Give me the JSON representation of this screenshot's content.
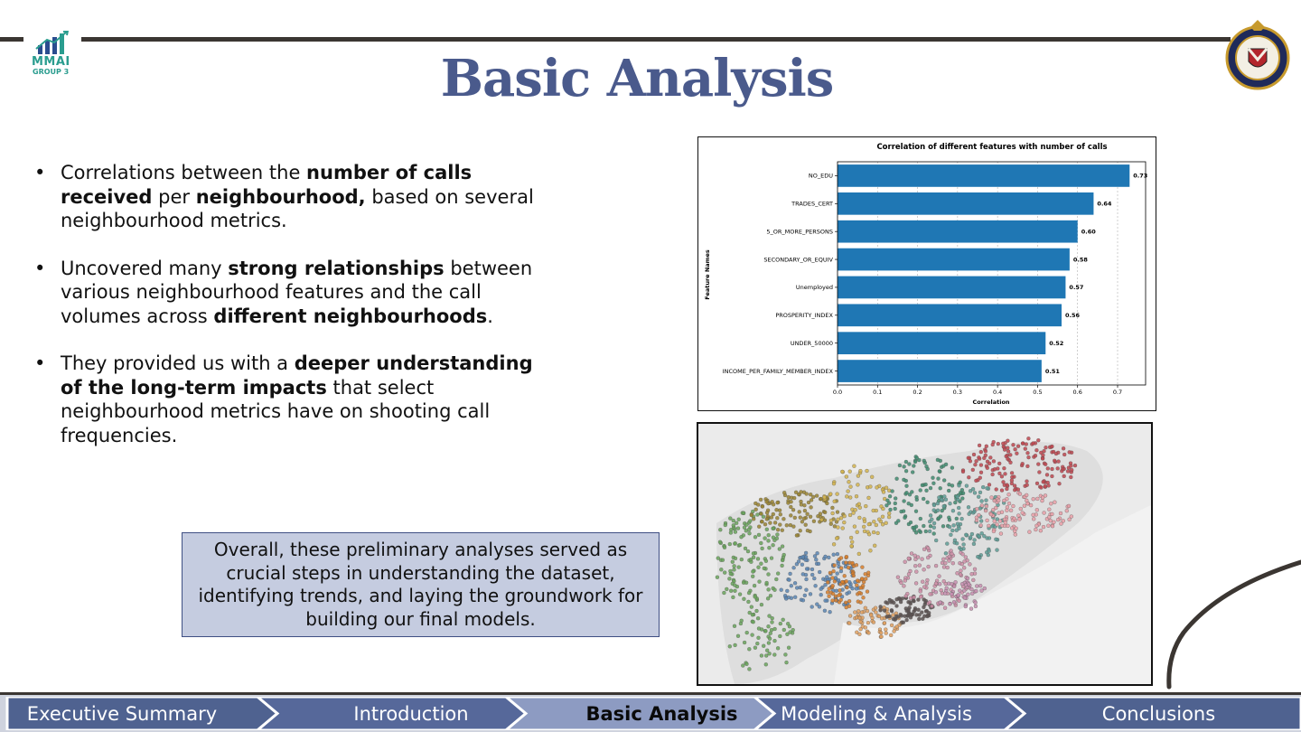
{
  "logo": {
    "name": "MMAI",
    "subtitle": "GROUP 3"
  },
  "title": "Basic Analysis",
  "badge_icon": "toronto-police-badge",
  "bullets": [
    {
      "parts": [
        {
          "text": "Correlations between the ",
          "bold": false
        },
        {
          "text": "number of calls received",
          "bold": true
        },
        {
          "text": " per ",
          "bold": false
        },
        {
          "text": "neighbourhood,",
          "bold": true
        },
        {
          "text": " based on several neighbourhood metrics.",
          "bold": false
        }
      ]
    },
    {
      "parts": [
        {
          "text": "Uncovered many ",
          "bold": false
        },
        {
          "text": "strong relationships",
          "bold": true
        },
        {
          "text": " between various neighbourhood features and the call volumes across ",
          "bold": false
        },
        {
          "text": "different neighbourhoods",
          "bold": true
        },
        {
          "text": ".",
          "bold": false
        }
      ]
    },
    {
      "parts": [
        {
          "text": "They provided us with a ",
          "bold": false
        },
        {
          "text": "deeper understanding of the long-term impacts",
          "bold": true
        },
        {
          "text": " that select neighbourhood metrics have on shooting call frequencies.",
          "bold": false
        }
      ]
    }
  ],
  "summary": "Overall, these preliminary analyses served as crucial steps in understanding the dataset, identifying trends, and laying the groundwork for building our final models.",
  "chart_data": {
    "type": "bar",
    "orientation": "horizontal",
    "title": "Correlation of different features with number of calls",
    "xlabel": "Correlation",
    "ylabel": "Feature Names",
    "categories": [
      "NO_EDU",
      "TRADES_CERT",
      "5_OR_MORE_PERSONS",
      "SECONDARY_OR_EQUIV",
      "Unemployed",
      "PROSPERITY_INDEX",
      "UNDER_50000",
      "INCOME_PER_FAMILY_MEMBER_INDEX"
    ],
    "values": [
      0.73,
      0.64,
      0.6,
      0.58,
      0.57,
      0.56,
      0.52,
      0.51
    ],
    "data_labels": [
      "0.73",
      "0.64",
      "0.60",
      "0.58",
      "0.57",
      "0.56",
      "0.52",
      "0.51"
    ],
    "xticks": [
      "0.0",
      "0.1",
      "0.2",
      "0.3",
      "0.4",
      "0.5",
      "0.6",
      "0.7"
    ],
    "xlim": [
      0,
      0.77
    ],
    "grid": "vertical-dashed",
    "bar_color": "#1f77b4"
  },
  "map": {
    "description_icon": "neighbourhood-cluster-map"
  },
  "nav": [
    {
      "label": "Executive Summary",
      "active": false,
      "color": "#4f6290"
    },
    {
      "label": "Introduction",
      "active": false,
      "color": "#56689a"
    },
    {
      "label": "Basic Analysis",
      "active": true,
      "color": "#8d9bc2"
    },
    {
      "label": "Modeling & Analysis",
      "active": false,
      "color": "#56689a"
    },
    {
      "label": "Conclusions",
      "active": false,
      "color": "#4f6290"
    }
  ]
}
